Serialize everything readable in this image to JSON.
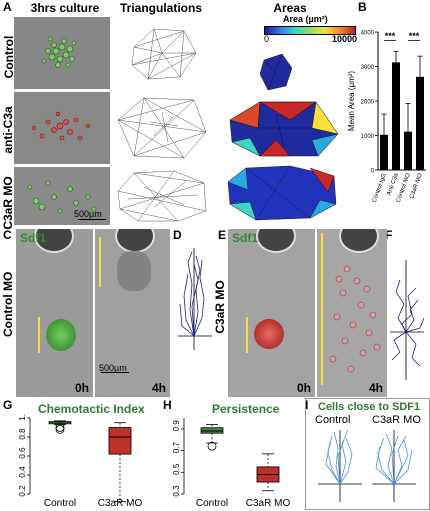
{
  "panel_labels": {
    "A": "A",
    "B": "B",
    "C": "C",
    "D": "D",
    "E": "E",
    "F": "F",
    "G": "G",
    "H": "H",
    "I": "I"
  },
  "panel_a": {
    "col_headers": [
      "3hrs culture",
      "Triangulations",
      "Areas"
    ],
    "rows": [
      "Control",
      "anti-C3a",
      "C3aR MO"
    ],
    "scalebar": "500µm",
    "colorbar": {
      "title": "Area (µm²)",
      "min": "0",
      "max": "10000"
    }
  },
  "panel_c": {
    "row_label": "Control MO",
    "sdf1": "Sdf1",
    "t0": "0h",
    "t4": "4h",
    "scalebar": "500µm"
  },
  "panel_e": {
    "row_label": "C3aR MO",
    "sdf1": "Sdf1",
    "t0": "0h",
    "t4": "4h"
  },
  "panel_g": {
    "title": "Chemotactic Index"
  },
  "panel_h": {
    "title": "Persistence"
  },
  "panel_i": {
    "title": "Cells close to SDF1",
    "labels": [
      "Control",
      "C3aR MO"
    ]
  },
  "colors": {
    "green_box": "#3e8c34",
    "red_box": "#c0302a",
    "bar": "#000000",
    "navy": "#1a237e",
    "track": "#4a8fe0"
  },
  "chart_data": [
    {
      "type": "bar",
      "panel": "B",
      "ylabel": "Mean Area (µm²)",
      "categories": [
        "Control IgG",
        "Anti C3a",
        "Control MO",
        "C3aR MO"
      ],
      "values": [
        1020,
        3120,
        1110,
        2700
      ],
      "errors": [
        600,
        320,
        820,
        600
      ],
      "ylim": [
        0,
        4000
      ],
      "yticks": [
        0,
        1000,
        2000,
        3000,
        4000
      ],
      "significance": [
        "***",
        "***"
      ]
    },
    {
      "type": "box",
      "panel": "G",
      "title": "Chemotactic Index",
      "categories": [
        "Control",
        "C3aR MO"
      ],
      "ylim": [
        0.2,
        1.0
      ],
      "yticks": [
        "0.2",
        "0.4",
        "0.6",
        "0.8",
        "1.0"
      ],
      "boxes": [
        {
          "name": "Control",
          "min": 0.93,
          "q1": 0.94,
          "median": 0.96,
          "q3": 0.96,
          "max": 0.97,
          "outliers": [
            0.88,
            0.9
          ]
        },
        {
          "name": "C3aR MO",
          "min": 0.12,
          "q1": 0.62,
          "median": 0.8,
          "q3": 0.9,
          "max": 0.95,
          "outliers": []
        }
      ]
    },
    {
      "type": "box",
      "panel": "H",
      "title": "Persistence",
      "categories": [
        "Control",
        "C3aR MO"
      ],
      "ylim": [
        0.3,
        1.0
      ],
      "yticks": [
        "0.3",
        "0.5",
        "0.7",
        "0.9"
      ],
      "boxes": [
        {
          "name": "Control",
          "min": 0.77,
          "q1": 0.86,
          "median": 0.88,
          "q3": 0.91,
          "max": 0.94,
          "outliers": [
            0.74
          ]
        },
        {
          "name": "C3aR MO",
          "min": 0.33,
          "q1": 0.41,
          "median": 0.48,
          "q3": 0.55,
          "max": 0.67,
          "outliers": []
        }
      ]
    }
  ]
}
